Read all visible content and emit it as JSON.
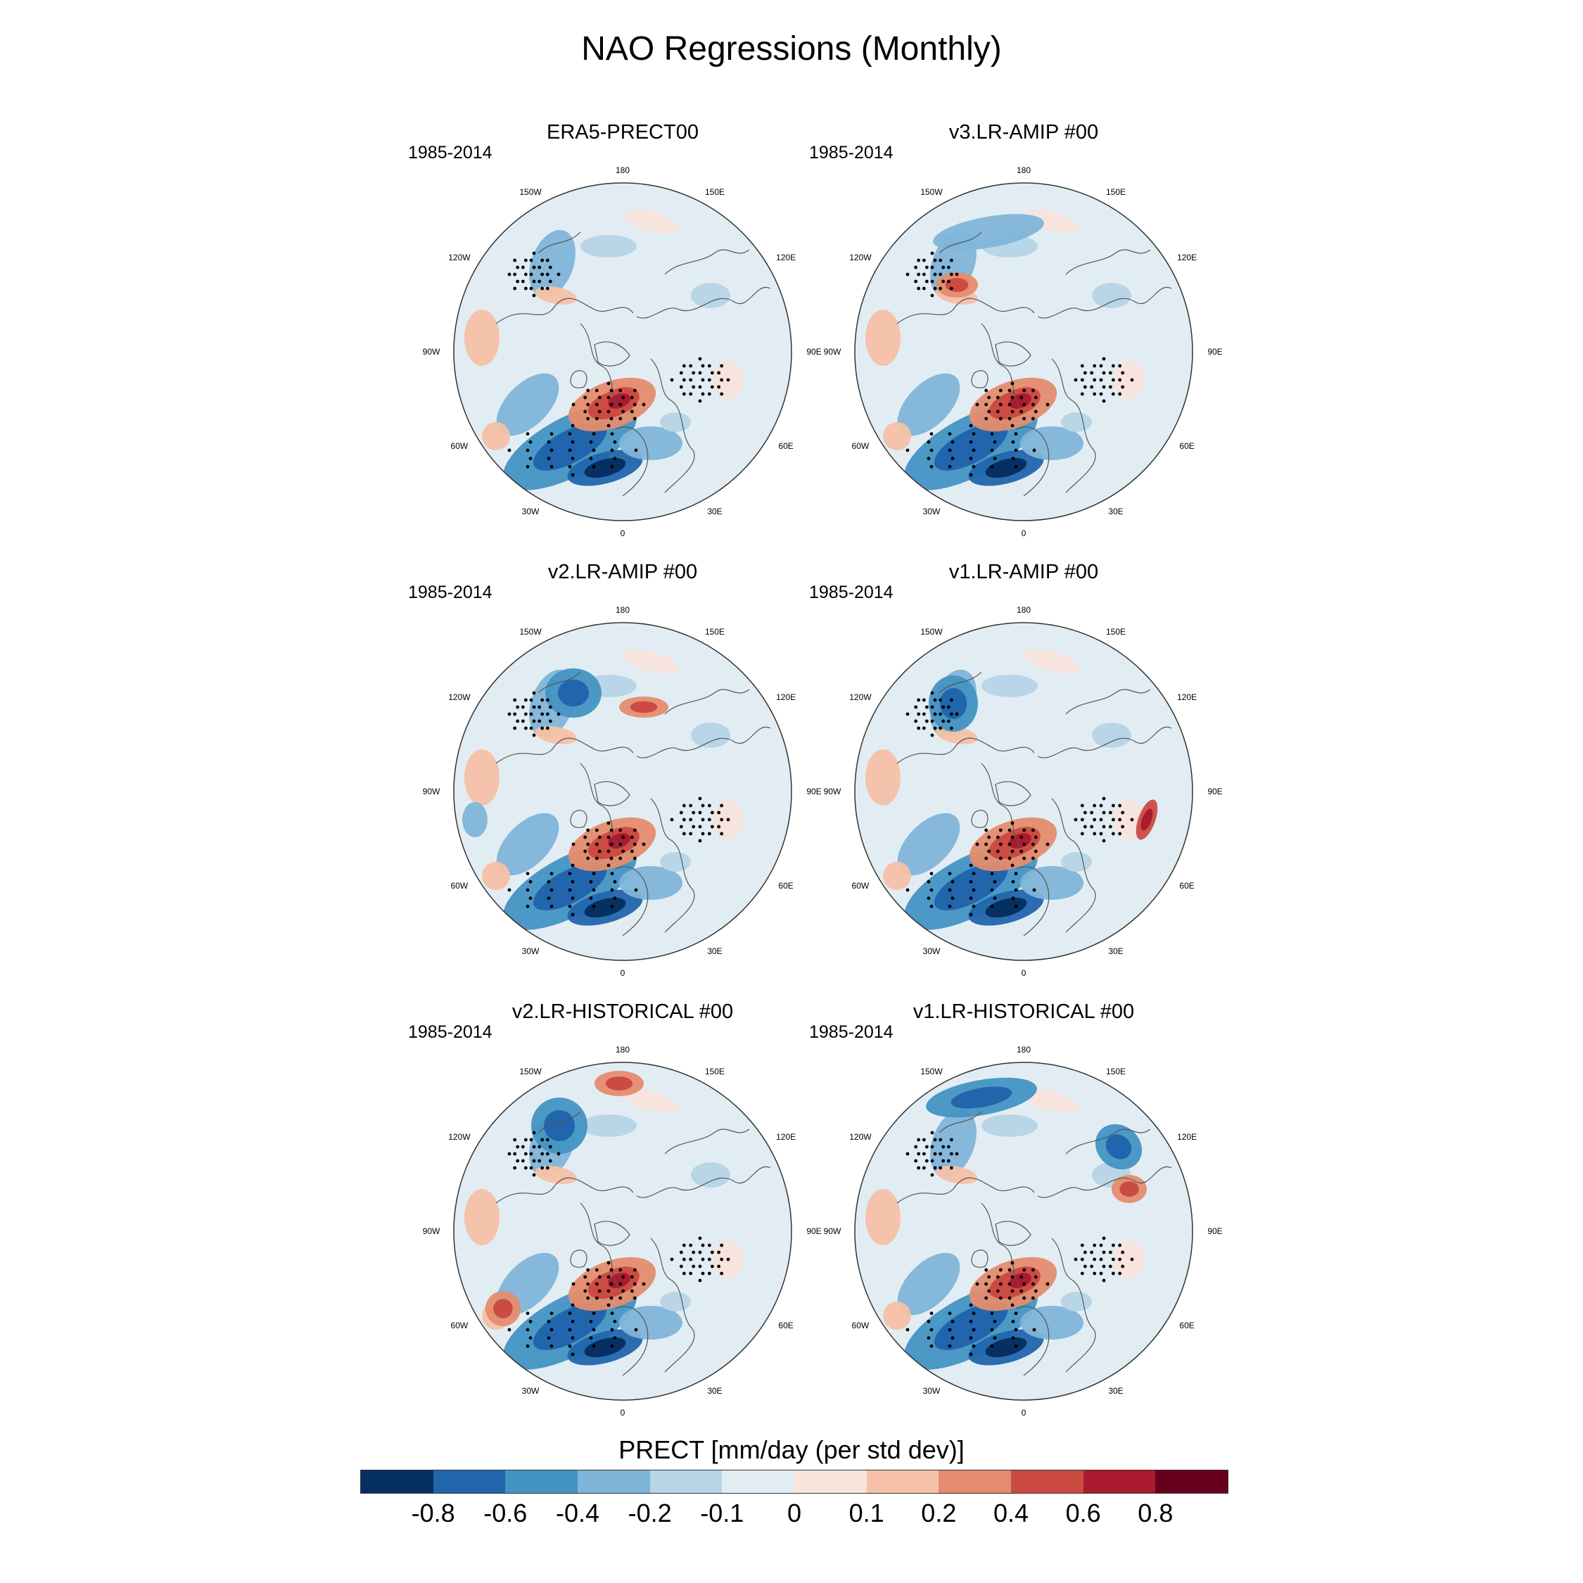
{
  "title": "NAO Regressions (Monthly)",
  "panels": [
    {
      "title": "ERA5-PRECT00",
      "period": "1985-2014"
    },
    {
      "title": "v3.LR-AMIP  #00",
      "period": "1985-2014"
    },
    {
      "title": "v2.LR-AMIP  #00",
      "period": "1985-2014"
    },
    {
      "title": "v1.LR-AMIP  #00",
      "period": "1985-2014"
    },
    {
      "title": "v2.LR-HISTORICAL  #00",
      "period": "1985-2014"
    },
    {
      "title": "v1.LR-HISTORICAL  #00",
      "period": "1985-2014"
    }
  ],
  "longitude_labels": [
    "180",
    "150E",
    "120E",
    "90E",
    "60E",
    "30E",
    "0",
    "30W",
    "60W",
    "90W",
    "120W",
    "150W"
  ],
  "colorbar": {
    "title": "PRECT [mm/day (per std dev)]",
    "ticks": [
      "-0.8",
      "-0.6",
      "-0.4",
      "-0.2",
      "-0.1",
      "0",
      "0.1",
      "0.2",
      "0.4",
      "0.6",
      "0.8"
    ],
    "colors": [
      "#053061",
      "#2166ac",
      "#4393c3",
      "#7fb5d8",
      "#b6d5e7",
      "#e2edf3",
      "#f9e4dc",
      "#f6c1a6",
      "#e58c6e",
      "#cb4b43",
      "#ab1a2e",
      "#67001f"
    ]
  }
}
